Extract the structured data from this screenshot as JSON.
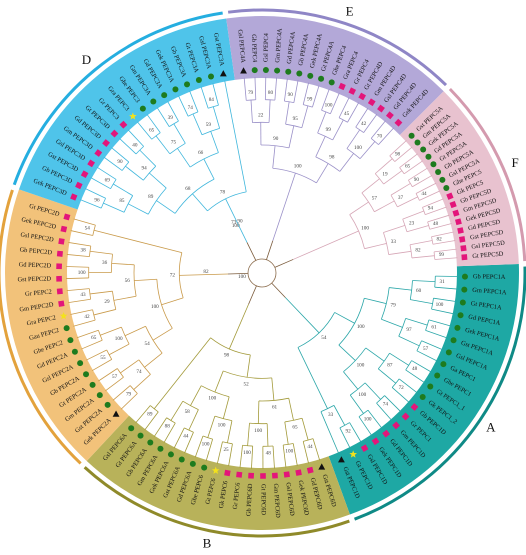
{
  "clades": [
    {
      "id": "A",
      "label": "A",
      "color": "#1ea8a4",
      "ring_color": "#0f8a86"
    },
    {
      "id": "B",
      "label": "B",
      "color": "#b8b25a",
      "ring_color": "#8f8a2a"
    },
    {
      "id": "C",
      "label": "C",
      "color": "#f2c27a",
      "ring_color": "#e3a23c"
    },
    {
      "id": "D",
      "label": "D",
      "color": "#4fc4ea",
      "ring_color": "#25aee0"
    },
    {
      "id": "E",
      "label": "E",
      "color": "#b3a8d8",
      "ring_color": "#8f86c6"
    },
    {
      "id": "F",
      "label": "F",
      "color": "#e8c2cf",
      "ring_color": "#d49aae"
    }
  ],
  "markers": {
    "circle": {
      "shape": "circle",
      "color": "#1e7b1e"
    },
    "square": {
      "shape": "square",
      "color": "#e3157a"
    },
    "triangle": {
      "shape": "triangle",
      "color": "#111111"
    },
    "star": {
      "shape": "star",
      "color": "#f3e21a"
    }
  },
  "branch_colors": {
    "A": "#2aa6a8",
    "B": "#a39a3a",
    "C": "#c99a4a",
    "D": "#3fb6dc",
    "E": "#9a90c8",
    "F": "#d6a6b6"
  },
  "root_label": "100",
  "leaves": [
    {
      "label": "Gb PEPC1A",
      "clade": "A",
      "marker": "circle"
    },
    {
      "label": "Gm PEPC1A",
      "clade": "A",
      "marker": "circle"
    },
    {
      "label": "Gt PEPC1A",
      "clade": "A",
      "marker": "circle"
    },
    {
      "label": "Gd PEPC1A",
      "clade": "A",
      "marker": "circle"
    },
    {
      "label": "Gek PEPC1A",
      "clade": "A",
      "marker": "circle"
    },
    {
      "label": "Gst PEPC1A",
      "clade": "A",
      "marker": "circle"
    },
    {
      "label": "Gsl PEPC1A",
      "clade": "A",
      "marker": "circle"
    },
    {
      "label": "Ga PEPC1",
      "clade": "A",
      "marker": "circle"
    },
    {
      "label": "Ghe PEPC1",
      "clade": "A",
      "marker": "circle"
    },
    {
      "label": "Gt PEPC1_1",
      "clade": "A",
      "marker": "circle"
    },
    {
      "label": "Gk PEPC1_2",
      "clade": "A",
      "marker": "circle"
    },
    {
      "label": "Gb PEPC1D",
      "clade": "A",
      "marker": "square"
    },
    {
      "label": "Gr PEPC1",
      "clade": "A",
      "marker": "square"
    },
    {
      "label": "Gm PEPC1D",
      "clade": "A",
      "marker": "square"
    },
    {
      "label": "Gd PEPC1D",
      "clade": "A",
      "marker": "square"
    },
    {
      "label": "Gek PEPC1D",
      "clade": "A",
      "marker": "square"
    },
    {
      "label": "Gsl PEPC1D",
      "clade": "A",
      "marker": "square"
    },
    {
      "label": "Gt PEPC1D",
      "clade": "A",
      "marker": "star"
    },
    {
      "label": "Gst PEPC1D",
      "clade": "A",
      "marker": "triangle"
    },
    {
      "label": "Gst PEPC6D",
      "clade": "B",
      "marker": "triangle"
    },
    {
      "label": "Gd PEPC6D",
      "clade": "B",
      "marker": "square"
    },
    {
      "label": "Gek PEPC6D",
      "clade": "B",
      "marker": "square"
    },
    {
      "label": "Gsl PEPC6D",
      "clade": "B",
      "marker": "square"
    },
    {
      "label": "Gm PEPC6D",
      "clade": "B",
      "marker": "square"
    },
    {
      "label": "Gt PEPC6D",
      "clade": "B",
      "marker": "square"
    },
    {
      "label": "Gb PEPC6D",
      "clade": "B",
      "marker": "square"
    },
    {
      "label": "Gr PEPC6",
      "clade": "B",
      "marker": "square"
    },
    {
      "label": "Gk PEPC6",
      "clade": "B",
      "marker": "square"
    },
    {
      "label": "Gt PEPC6",
      "clade": "B",
      "marker": "star"
    },
    {
      "label": "Ghe PEPC6",
      "clade": "B",
      "marker": "circle"
    },
    {
      "label": "Gd PEPC6A",
      "clade": "B",
      "marker": "circle"
    },
    {
      "label": "Gst PEPC6A",
      "clade": "B",
      "marker": "circle"
    },
    {
      "label": "Gek PEPC6A",
      "clade": "B",
      "marker": "circle"
    },
    {
      "label": "Gm PEPC6A",
      "clade": "B",
      "marker": "circle"
    },
    {
      "label": "Gb PEPC6A",
      "clade": "B",
      "marker": "circle"
    },
    {
      "label": "Gt PEPC6A",
      "clade": "B",
      "marker": "circle"
    },
    {
      "label": "Gsl PEPC6A",
      "clade": "B",
      "marker": "circle"
    },
    {
      "label": "Gek PEPC2A",
      "clade": "C",
      "marker": "triangle"
    },
    {
      "label": "Gst PEPC2A",
      "clade": "C",
      "marker": "circle"
    },
    {
      "label": "Gm PEPC2A",
      "clade": "C",
      "marker": "circle"
    },
    {
      "label": "Gt PEPC2A",
      "clade": "C",
      "marker": "circle"
    },
    {
      "label": "Gb PEPC2A",
      "clade": "C",
      "marker": "circle"
    },
    {
      "label": "Gsl PEPC2A",
      "clade": "C",
      "marker": "circle"
    },
    {
      "label": "Gd PEPC2A",
      "clade": "C",
      "marker": "circle"
    },
    {
      "label": "Ghe PEPC2",
      "clade": "C",
      "marker": "circle"
    },
    {
      "label": "Gau PEPC2",
      "clade": "C",
      "marker": "circle"
    },
    {
      "label": "Gra PEPC2",
      "clade": "C",
      "marker": "star"
    },
    {
      "label": "Gm PEPC2D",
      "clade": "C",
      "marker": "square"
    },
    {
      "label": "Gr PEPC2",
      "clade": "C",
      "marker": "square"
    },
    {
      "label": "Gst PEPC2D",
      "clade": "C",
      "marker": "square"
    },
    {
      "label": "Gd PEPC2D",
      "clade": "C",
      "marker": "square"
    },
    {
      "label": "Gb PEPC2D",
      "clade": "C",
      "marker": "square"
    },
    {
      "label": "Gsl PEPC2D",
      "clade": "C",
      "marker": "square"
    },
    {
      "label": "Gek PEPC2D",
      "clade": "C",
      "marker": "square"
    },
    {
      "label": "Gt PEPC2D",
      "clade": "C",
      "marker": "square"
    },
    {
      "label": "Gek PEPC3D",
      "clade": "D",
      "marker": "square"
    },
    {
      "label": "Gb PEPC3D",
      "clade": "D",
      "marker": "square"
    },
    {
      "label": "Gst PEPC3D",
      "clade": "D",
      "marker": "square"
    },
    {
      "label": "Gsl PEPC3D",
      "clade": "D",
      "marker": "square"
    },
    {
      "label": "Gm PEPC3D",
      "clade": "D",
      "marker": "square"
    },
    {
      "label": "Gd PEPC3D",
      "clade": "D",
      "marker": "square"
    },
    {
      "label": "Gt PEPC3D",
      "clade": "D",
      "marker": "square"
    },
    {
      "label": "Gr PEPC3",
      "clade": "D",
      "marker": "square"
    },
    {
      "label": "Gra PEPC3",
      "clade": "D",
      "marker": "star"
    },
    {
      "label": "Ghe PEPC3",
      "clade": "D",
      "marker": "circle"
    },
    {
      "label": "Gm PEPC3A",
      "clade": "D",
      "marker": "circle"
    },
    {
      "label": "Gd PEPC3A",
      "clade": "D",
      "marker": "circle"
    },
    {
      "label": "Gek PEPC3A",
      "clade": "D",
      "marker": "circle"
    },
    {
      "label": "Gb PEPC3A",
      "clade": "D",
      "marker": "circle"
    },
    {
      "label": "Gt PEPC3A",
      "clade": "D",
      "marker": "circle"
    },
    {
      "label": "Gsl PEPC3A",
      "clade": "D",
      "marker": "circle"
    },
    {
      "label": "Gst PEPC3A",
      "clade": "D",
      "marker": "triangle"
    },
    {
      "label": "Gsl PEPC4A",
      "clade": "E",
      "marker": "triangle"
    },
    {
      "label": "Gb PEPC4",
      "clade": "E",
      "marker": "circle"
    },
    {
      "label": "Gsl PEPC4",
      "clade": "E",
      "marker": "circle"
    },
    {
      "label": "Gm PEPC4A",
      "clade": "E",
      "marker": "circle"
    },
    {
      "label": "Gd PEPC4A",
      "clade": "E",
      "marker": "circle"
    },
    {
      "label": "Gb PEPC4A",
      "clade": "E",
      "marker": "circle"
    },
    {
      "label": "Gek PEPC4A",
      "clade": "E",
      "marker": "circle"
    },
    {
      "label": "Gt PEPC4A",
      "clade": "E",
      "marker": "circle"
    },
    {
      "label": "Ghe PEPC4",
      "clade": "E",
      "marker": "circle"
    },
    {
      "label": "Gra PEPC4",
      "clade": "E",
      "marker": "square"
    },
    {
      "label": "Gr PEPC4",
      "clade": "E",
      "marker": "square"
    },
    {
      "label": "Gt PEPC4D",
      "clade": "E",
      "marker": "square"
    },
    {
      "label": "Gm PEPC4D",
      "clade": "E",
      "marker": "square"
    },
    {
      "label": "Gsl PEPC4D",
      "clade": "E",
      "marker": "square"
    },
    {
      "label": "Gd PEPC4D",
      "clade": "E",
      "marker": "square"
    },
    {
      "label": "Gek PEPC4D",
      "clade": "E",
      "marker": "square"
    },
    {
      "label": "Gst PEPC5A",
      "clade": "F",
      "marker": "circle"
    },
    {
      "label": "Gm PEPC5A",
      "clade": "F",
      "marker": "circle"
    },
    {
      "label": "Gek PEPC5A",
      "clade": "F",
      "marker": "circle"
    },
    {
      "label": "Gd PEPC5A",
      "clade": "F",
      "marker": "circle"
    },
    {
      "label": "Gt PEPC5A",
      "clade": "F",
      "marker": "circle"
    },
    {
      "label": "Gb PEPC5A",
      "clade": "F",
      "marker": "circle"
    },
    {
      "label": "Gsl PEPC5A",
      "clade": "F",
      "marker": "circle"
    },
    {
      "label": "Ghe PEPC5",
      "clade": "F",
      "marker": "circle"
    },
    {
      "label": "Gk PEPC5",
      "clade": "F",
      "marker": "square"
    },
    {
      "label": "Gb PEPC5D",
      "clade": "F",
      "marker": "square"
    },
    {
      "label": "Gm PEPC5D",
      "clade": "F",
      "marker": "square"
    },
    {
      "label": "Gek PEPC5D",
      "clade": "F",
      "marker": "square"
    },
    {
      "label": "Gd PEPC5D",
      "clade": "F",
      "marker": "square"
    },
    {
      "label": "Gst PEPC5D",
      "clade": "F",
      "marker": "square"
    },
    {
      "label": "Gsl PEPC5D",
      "clade": "F",
      "marker": "square"
    },
    {
      "label": "Gt PEPC5D",
      "clade": "F",
      "marker": "square"
    }
  ],
  "bootstrap": {
    "A": [
      "31",
      "100",
      "61",
      "57",
      "48",
      "72",
      "74",
      "100",
      "92",
      "60",
      "97",
      "87",
      "100",
      "33",
      "79",
      "100",
      "100",
      "54"
    ],
    "B": [
      "44",
      "100",
      "48",
      "100",
      "25",
      "100",
      "44",
      "88",
      "89",
      "65",
      "100",
      "100",
      "58",
      "61",
      "100",
      "52",
      "98"
    ],
    "C": [
      "79",
      "57",
      "55",
      "65",
      "42",
      "43",
      "100",
      "38",
      "54",
      "74",
      "100",
      "29",
      "36",
      "54",
      "56",
      "100",
      "72",
      "82"
    ],
    "D": [
      "96",
      "69",
      "90",
      "40",
      "65",
      "39",
      "74",
      "84",
      "85",
      "94",
      "75",
      "59",
      "89",
      "66",
      "68",
      "78",
      "100",
      "90",
      "73"
    ],
    "E": [
      "79",
      "80",
      "90",
      "99",
      "100",
      "45",
      "42",
      "70",
      "22",
      "95",
      "99",
      "100",
      "90",
      "98",
      "100"
    ],
    "F": [
      "98",
      "65",
      "90",
      "44",
      "94",
      "48",
      "82",
      "99",
      "19",
      "37",
      "23",
      "82",
      "57",
      "33",
      "100"
    ]
  }
}
